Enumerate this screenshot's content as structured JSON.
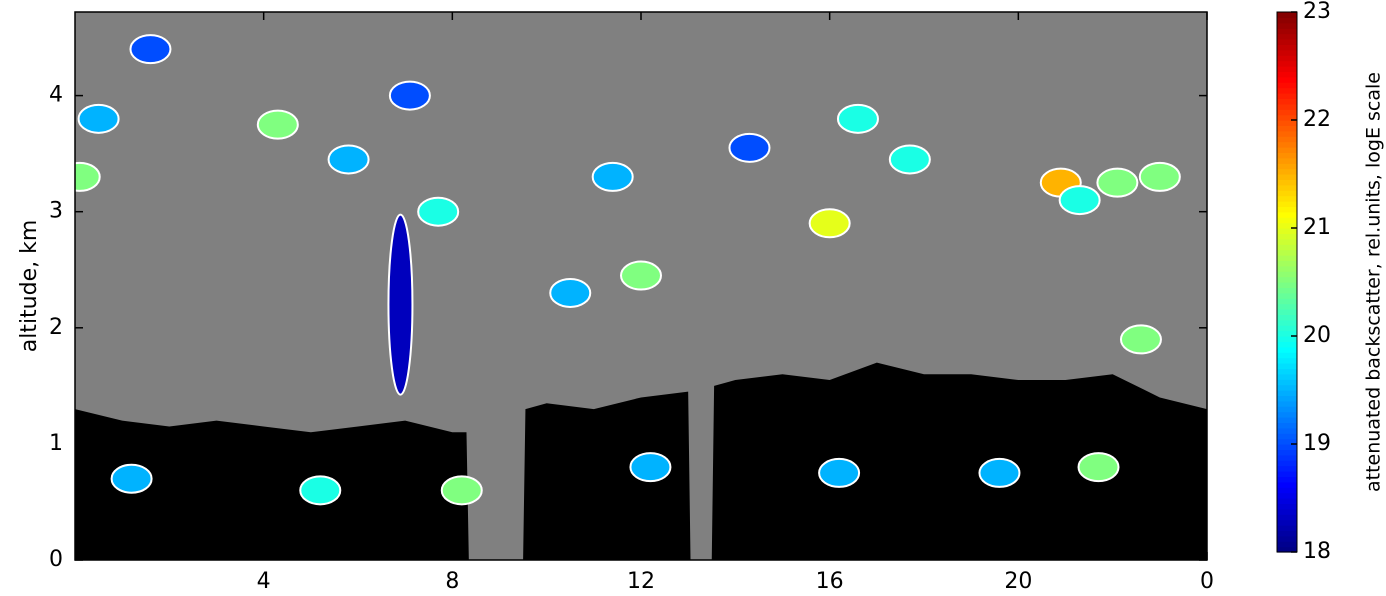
{
  "chart_data": {
    "type": "heatmap",
    "y_label": "altitude, km",
    "colorbar_label": "attenuated backscatter, rel.units, logE scale",
    "xlim": [
      0,
      24
    ],
    "xticks": [
      4,
      8,
      12,
      16,
      20,
      {
        "value": 24,
        "label": "0"
      }
    ],
    "ylim": [
      0,
      4.72
    ],
    "yticks": [
      0,
      1,
      2,
      3,
      4
    ],
    "clim": [
      18,
      23
    ],
    "cticks": [
      18,
      19,
      20,
      21,
      22,
      23
    ],
    "background_color": "#808080",
    "boundary_layer": {
      "x": [
        0,
        1,
        2,
        3,
        4,
        5,
        6,
        7,
        8,
        8.3,
        8.35,
        9.5,
        9.55,
        10,
        11,
        12,
        13,
        13.05,
        13.5,
        13.55,
        14,
        15,
        16,
        17,
        18,
        19,
        20,
        21,
        22,
        23,
        24
      ],
      "top": [
        1.3,
        1.2,
        1.15,
        1.2,
        1.15,
        1.1,
        1.15,
        1.2,
        1.1,
        1.1,
        0,
        0,
        1.3,
        1.35,
        1.3,
        1.4,
        1.45,
        0,
        0,
        1.5,
        1.55,
        1.6,
        1.55,
        1.7,
        1.6,
        1.6,
        1.55,
        1.55,
        1.6,
        1.4,
        1.3
      ]
    },
    "clouds": {
      "x": [
        0.5,
        1.6,
        4.3,
        5.8,
        7.1,
        6.9,
        7.7,
        8.2,
        10.5,
        12.0,
        12.2,
        11.4,
        14.3,
        16.0,
        16.6,
        17.7,
        20.9,
        21.3,
        22.1,
        23.0,
        22.6,
        21.7,
        19.6,
        16.2,
        5.2,
        1.2,
        0.1
      ],
      "y": [
        3.8,
        4.4,
        3.75,
        3.45,
        4.0,
        2.2,
        3.0,
        0.6,
        2.3,
        2.45,
        0.8,
        3.3,
        3.55,
        2.9,
        3.8,
        3.45,
        3.25,
        3.1,
        3.25,
        3.3,
        1.9,
        0.8,
        0.75,
        0.75,
        0.6,
        0.7,
        3.3
      ],
      "values": [
        19.5,
        19,
        20.5,
        19.5,
        19,
        18.3,
        20,
        20.5,
        19.5,
        20.5,
        19.5,
        19.5,
        19,
        21,
        20,
        20,
        21.5,
        20,
        20.5,
        20.5,
        20.5,
        20.5,
        19.5,
        19.5,
        20,
        19.5,
        20.5
      ]
    }
  }
}
